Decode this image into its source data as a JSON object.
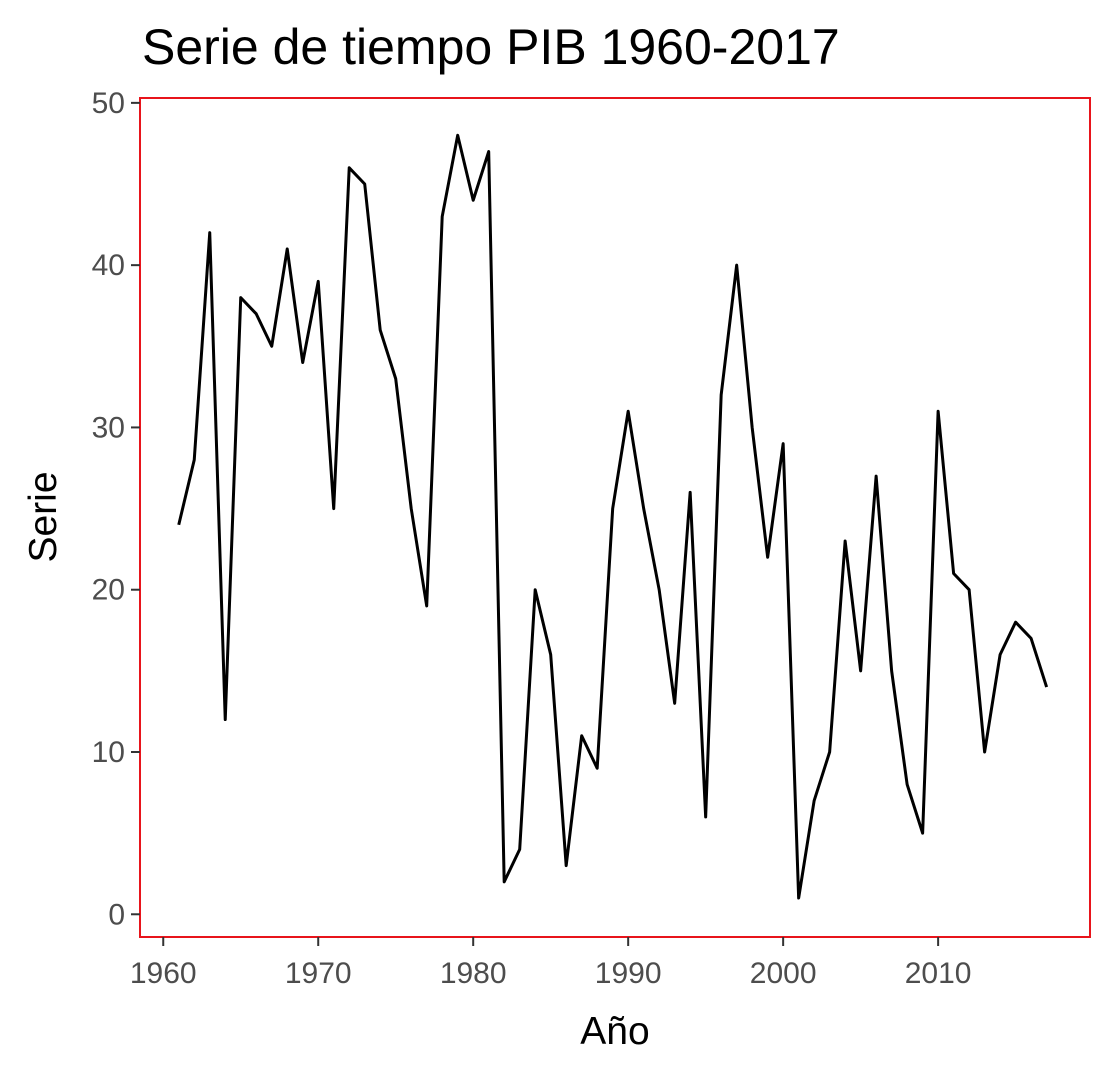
{
  "chart_data": {
    "type": "line",
    "title": "Serie de tiempo PIB 1960-2017",
    "xlabel": "Año",
    "ylabel": "Serie",
    "xlim": [
      1958.5,
      2019.8
    ],
    "ylim": [
      -1.4,
      50.3
    ],
    "x_ticks": [
      1960,
      1970,
      1980,
      1990,
      2000,
      2010
    ],
    "y_ticks": [
      0,
      10,
      20,
      30,
      40,
      50
    ],
    "grid": false,
    "legend": "none",
    "panel_border_color": "#e8141b",
    "line_color": "#000000",
    "series": [
      {
        "x": [
          1961,
          1962,
          1963,
          1964,
          1965,
          1966,
          1967,
          1968,
          1969,
          1970,
          1971,
          1972,
          1973,
          1974,
          1975,
          1976,
          1977,
          1978,
          1979,
          1980,
          1981,
          1982,
          1983,
          1984,
          1985,
          1986,
          1987,
          1988,
          1989,
          1990,
          1991,
          1992,
          1993,
          1994,
          1995,
          1996,
          1997,
          1998,
          1999,
          2000,
          2001,
          2002,
          2003,
          2004,
          2005,
          2006,
          2007,
          2008,
          2009,
          2010,
          2011,
          2012,
          2013,
          2014,
          2015,
          2016,
          2017
        ],
        "values": [
          24,
          28,
          42,
          12,
          38,
          37,
          35,
          41,
          34,
          39,
          25,
          46,
          45,
          36,
          33,
          25,
          19,
          43,
          48,
          44,
          47,
          2,
          4,
          20,
          16,
          3,
          11,
          9,
          25,
          31,
          25,
          20,
          13,
          26,
          6,
          32,
          40,
          30,
          22,
          29,
          1,
          7,
          10,
          23,
          15,
          27,
          15,
          8,
          5,
          31,
          21,
          20,
          10,
          16,
          18,
          17,
          14
        ]
      }
    ]
  }
}
